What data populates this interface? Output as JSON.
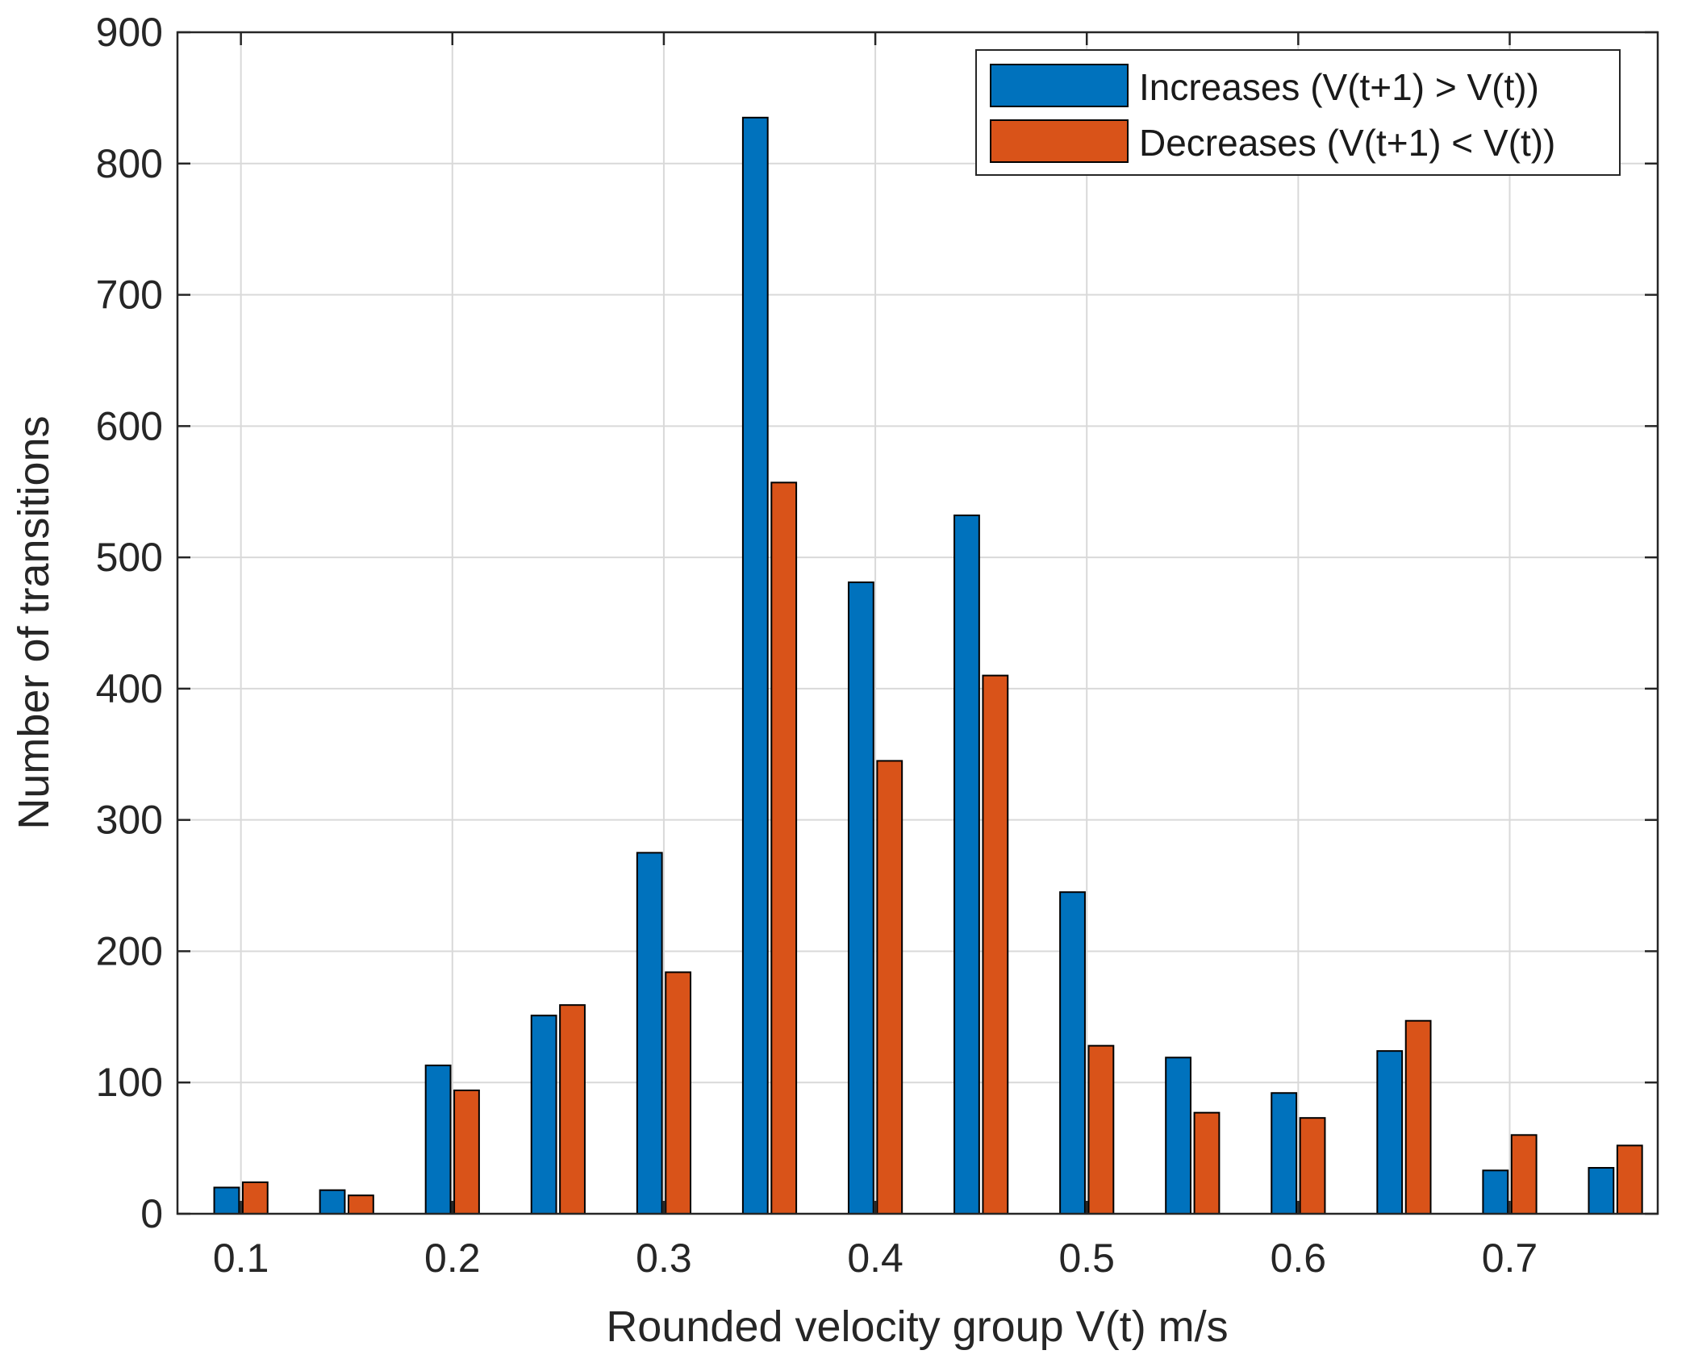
{
  "chart_data": {
    "type": "bar",
    "title": "",
    "xlabel": "Rounded velocity group V(t) m/s",
    "ylabel": "Number of transitions",
    "x": [
      0.1,
      0.15,
      0.2,
      0.25,
      0.3,
      0.35,
      0.4,
      0.45,
      0.5,
      0.55,
      0.6,
      0.65,
      0.7,
      0.75
    ],
    "xlim": [
      0.07,
      0.77
    ],
    "ylim": [
      0,
      900
    ],
    "xticks": [
      0.1,
      0.2,
      0.3,
      0.4,
      0.5,
      0.6,
      0.7
    ],
    "xtick_labels": [
      "0.1",
      "0.2",
      "0.3",
      "0.4",
      "0.5",
      "0.6",
      "0.7"
    ],
    "yticks": [
      0,
      100,
      200,
      300,
      400,
      500,
      600,
      700,
      800,
      900
    ],
    "ytick_labels": [
      "0",
      "100",
      "200",
      "300",
      "400",
      "500",
      "600",
      "700",
      "800",
      "900"
    ],
    "grid": true,
    "legend_position": "top-right",
    "series": [
      {
        "name": "Increases (V(t+1) > V(t))",
        "color": "#0072BD",
        "values": [
          20,
          18,
          113,
          151,
          275,
          835,
          481,
          532,
          245,
          119,
          92,
          124,
          33,
          35
        ]
      },
      {
        "name": "Decreases (V(t+1) < V(t))",
        "color": "#D95319",
        "values": [
          24,
          14,
          94,
          159,
          184,
          557,
          345,
          410,
          128,
          77,
          73,
          147,
          60,
          52
        ]
      }
    ]
  }
}
